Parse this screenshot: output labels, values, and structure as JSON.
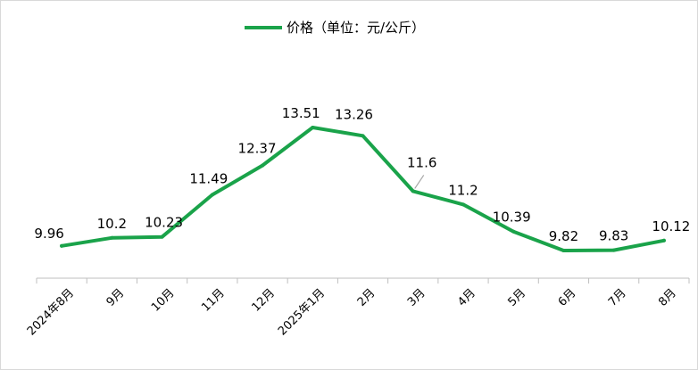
{
  "chart_data": {
    "type": "line",
    "title": "",
    "categories": [
      "2024年8月",
      "9月",
      "10月",
      "11月",
      "12月",
      "2025年1月",
      "2月",
      "3月",
      "4月",
      "5月",
      "6月",
      "7月",
      "8月"
    ],
    "series": [
      {
        "name": "价格（单位：元/公斤）",
        "values": [
          9.96,
          10.2,
          10.23,
          11.49,
          12.37,
          13.51,
          13.26,
          11.6,
          11.2,
          10.39,
          9.82,
          9.83,
          10.12
        ],
        "labels": [
          "9.96",
          "10.2",
          "10.23",
          "11.49",
          "12.37",
          "13.51",
          "13.26",
          "11.6",
          "11.2",
          "10.39",
          "9.82",
          "9.83",
          "10.12"
        ]
      }
    ],
    "legend_position": "top",
    "grid": false,
    "colors": {
      "line": "#1aa34a",
      "axis": "#bfbfbf",
      "leader": "#a6a6a6"
    }
  }
}
